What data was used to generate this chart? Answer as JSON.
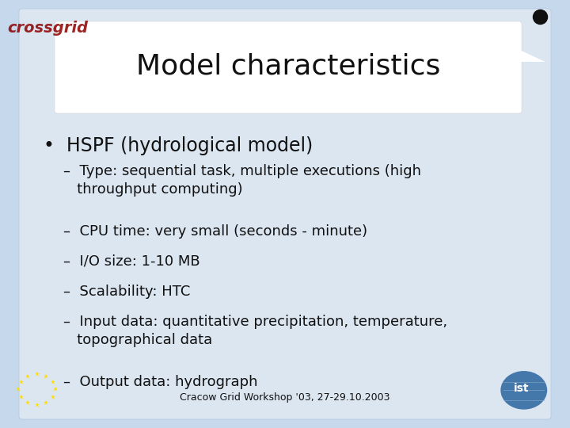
{
  "title": "Model characteristics",
  "bg_outer": "#c5d8ec",
  "bg_slide": "#dce6f1",
  "bg_title_box": "#ffffff",
  "title_fontsize": 26,
  "bullet_text": "HSPF (hydrological model)",
  "bullet_fontsize": 17,
  "sub_items": [
    "Type: sequential task, multiple executions (high\n   throughput computing)",
    "CPU time: very small (seconds - minute)",
    "I/O size: 1-10 MB",
    "Scalability: HTC",
    "Input data: quantitative precipitation, temperature,\n   topographical data",
    "Output data: hydrograph"
  ],
  "sub_fontsize": 13,
  "footer_text": "Cracow Grid Workshop '03, 27-29.10.2003",
  "footer_fontsize": 9,
  "text_color": "#111111"
}
